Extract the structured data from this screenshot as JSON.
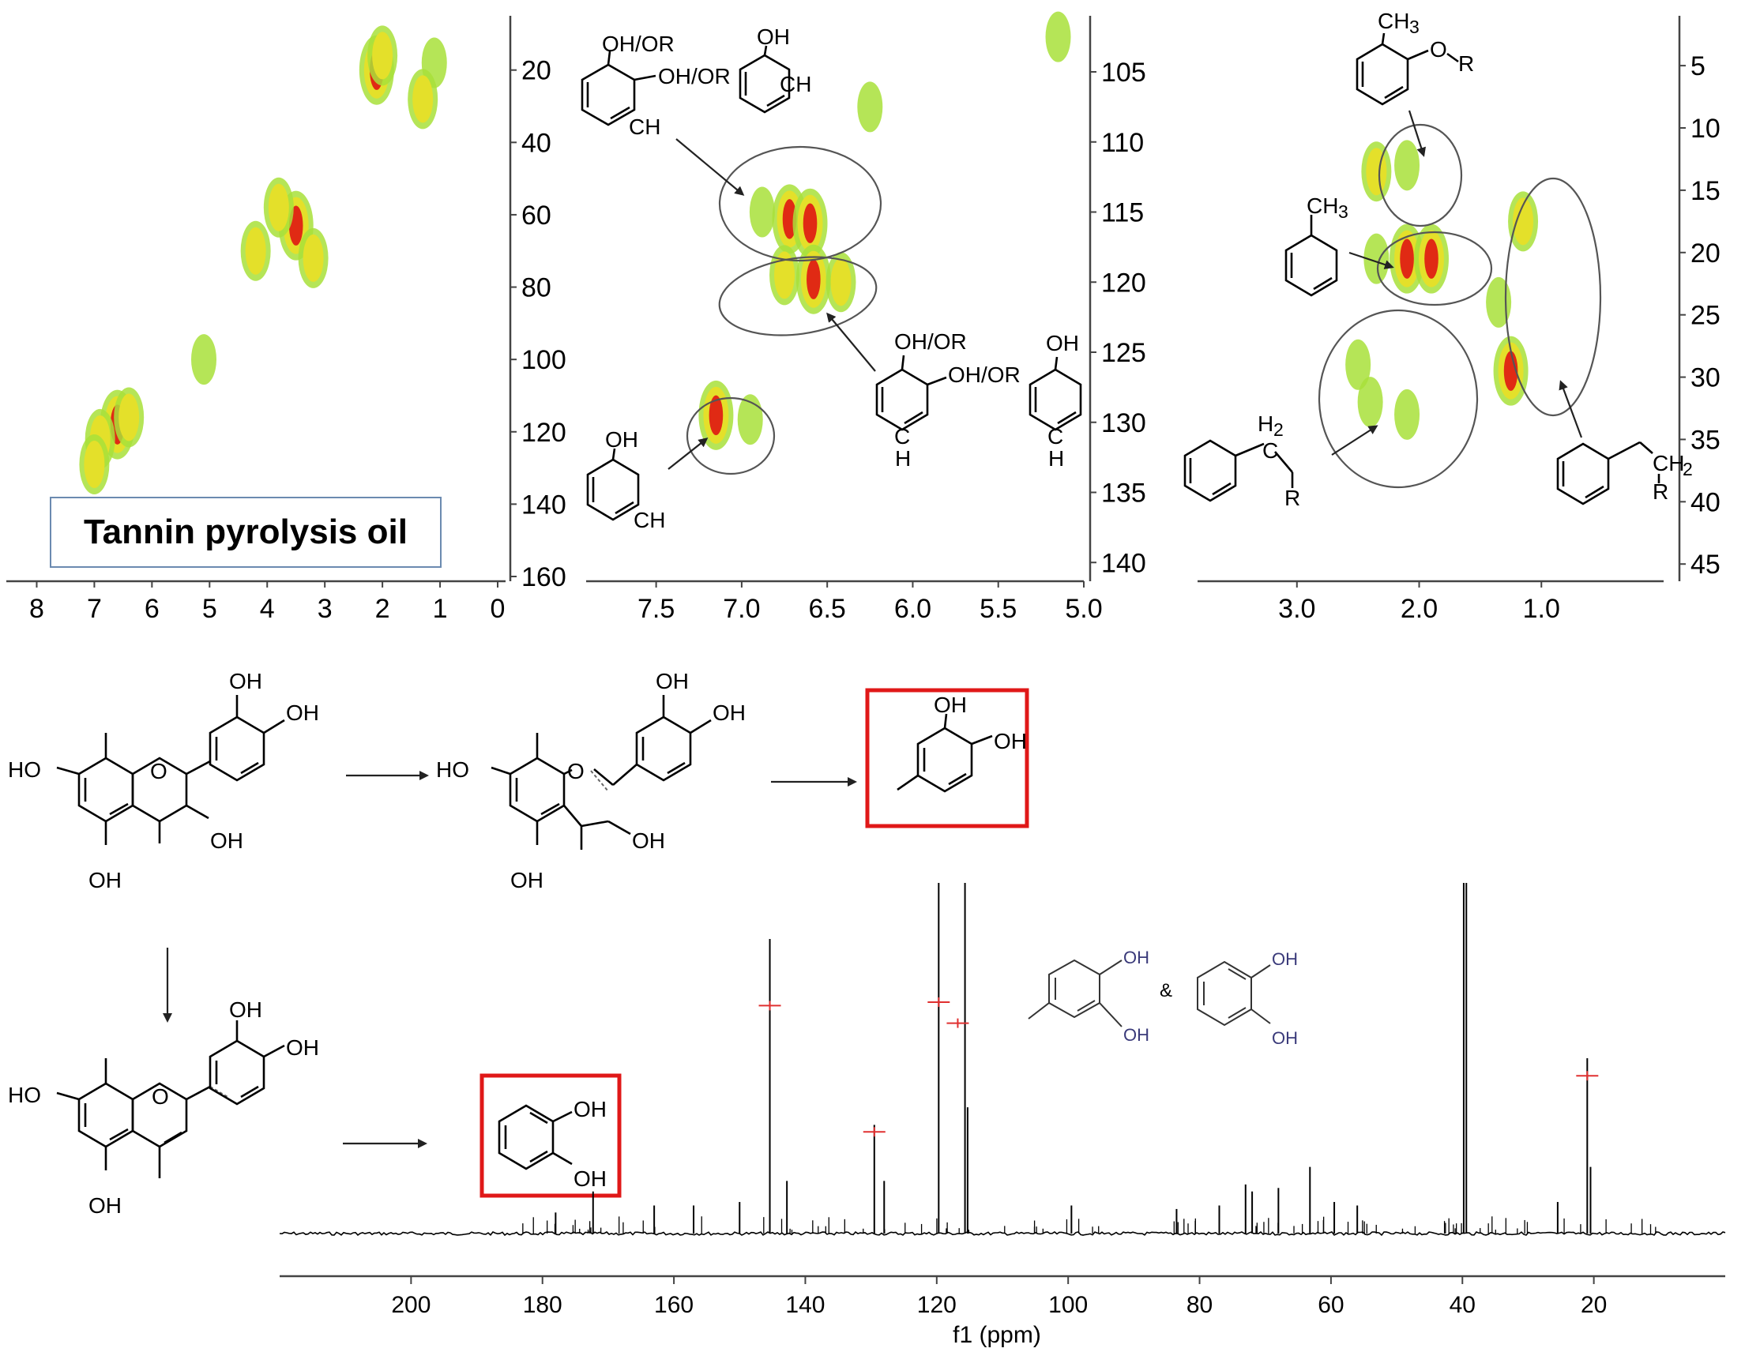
{
  "colors": {
    "peak_low": "#a8e03a",
    "peak_mid": "#e4e02a",
    "peak_high": "#e02a14",
    "highlight_box": "#e01818",
    "integration_mark": "#e03030",
    "axis": "#444444"
  },
  "panel_1": {
    "label": "Tannin pyrolysis oil",
    "x_ticks": [
      "8",
      "7",
      "6",
      "5",
      "4",
      "3",
      "2",
      "1",
      "0"
    ],
    "y_ticks": [
      "20",
      "40",
      "60",
      "80",
      "100",
      "120",
      "140",
      "160"
    ]
  },
  "panel_2": {
    "x_ticks": [
      "7.5",
      "7.0",
      "6.5",
      "6.0",
      "5.5",
      "5.0"
    ],
    "y_ticks": [
      "105",
      "110",
      "115",
      "120",
      "125",
      "130",
      "135",
      "140"
    ],
    "labels": {
      "catechol_oh": "OH/OR",
      "catechol_oh2": "OH/OR",
      "catechol_ch": "CH",
      "phenol_oh": "OH",
      "phenol_ch": "CH",
      "sub_oh": "OH/OR",
      "sub_oh2": "OH/OR",
      "sub_c": "C",
      "sub_h": "H",
      "para_oh": "OH",
      "para_c": "C",
      "para_h": "H",
      "meta_oh": "OH",
      "meta_ch": "CH"
    }
  },
  "panel_3": {
    "x_ticks": [
      "3.0",
      "2.0",
      "1.0"
    ],
    "y_ticks": [
      "5",
      "10",
      "15",
      "20",
      "25",
      "30",
      "35",
      "40",
      "45"
    ],
    "labels": {
      "ch3_or": "CH",
      "ch3_or_sub": "3",
      "or_o": "O",
      "or_r": "R",
      "toluene_ch3": "CH",
      "toluene_sub": "3",
      "ethyl_h2": "H",
      "ethyl_h2_sub": "2",
      "ethyl_c": "C",
      "ethyl_r": "R",
      "propyl_ch2": "CH",
      "propyl_ch2_sub": "2",
      "propyl_r": "R"
    }
  },
  "scheme": {
    "oh": "OH",
    "ho": "HO",
    "o": "O",
    "oh_cut": "OH"
  },
  "spectrum": {
    "xlabel": "f1 (ppm)",
    "x_ticks": [
      "200",
      "180",
      "160",
      "140",
      "120",
      "100",
      "80",
      "60",
      "40",
      "20"
    ],
    "inset_oh": "OH",
    "inset_amp": "&"
  },
  "chart_data": [
    {
      "type": "heatmap",
      "xlabel": "",
      "ylabel": "",
      "xlim": [
        8.5,
        0
      ],
      "ylim": [
        5,
        160
      ],
      "points": [
        {
          "x": 2.1,
          "y": 20,
          "level": 3
        },
        {
          "x": 2.0,
          "y": 16,
          "level": 2
        },
        {
          "x": 1.1,
          "y": 18,
          "level": 1
        },
        {
          "x": 1.3,
          "y": 28,
          "level": 2
        },
        {
          "x": 3.5,
          "y": 63,
          "level": 3
        },
        {
          "x": 3.8,
          "y": 58,
          "level": 2
        },
        {
          "x": 3.2,
          "y": 72,
          "level": 2
        },
        {
          "x": 4.2,
          "y": 70,
          "level": 2
        },
        {
          "x": 6.6,
          "y": 118,
          "level": 3
        },
        {
          "x": 6.9,
          "y": 122,
          "level": 2
        },
        {
          "x": 6.4,
          "y": 116,
          "level": 2
        },
        {
          "x": 7.0,
          "y": 129,
          "level": 2
        },
        {
          "x": 5.1,
          "y": 100,
          "level": 1
        }
      ]
    },
    {
      "type": "heatmap",
      "xlabel": "",
      "ylabel": "",
      "xlim": [
        7.9,
        5.0
      ],
      "ylim": [
        101,
        141
      ],
      "points": [
        {
          "x": 6.72,
          "y": 115.5,
          "level": 3
        },
        {
          "x": 6.6,
          "y": 115.8,
          "level": 3
        },
        {
          "x": 6.58,
          "y": 119.8,
          "level": 3
        },
        {
          "x": 6.42,
          "y": 120.0,
          "level": 2
        },
        {
          "x": 6.75,
          "y": 119.5,
          "level": 2
        },
        {
          "x": 7.15,
          "y": 129.5,
          "level": 3
        },
        {
          "x": 6.95,
          "y": 129.8,
          "level": 1
        },
        {
          "x": 6.88,
          "y": 115.0,
          "level": 1
        },
        {
          "x": 5.15,
          "y": 102.5,
          "level": 1
        },
        {
          "x": 6.25,
          "y": 107.5,
          "level": 1
        }
      ]
    },
    {
      "type": "heatmap",
      "xlabel": "",
      "ylabel": "",
      "xlim": [
        3.8,
        0
      ],
      "ylim": [
        1,
        46
      ],
      "points": [
        {
          "x": 2.35,
          "y": 13.5,
          "level": 2
        },
        {
          "x": 2.1,
          "y": 13.0,
          "level": 1
        },
        {
          "x": 2.1,
          "y": 20.5,
          "level": 3
        },
        {
          "x": 1.9,
          "y": 20.5,
          "level": 3
        },
        {
          "x": 2.35,
          "y": 20.5,
          "level": 1
        },
        {
          "x": 1.15,
          "y": 17.5,
          "level": 2
        },
        {
          "x": 1.25,
          "y": 29.5,
          "level": 3
        },
        {
          "x": 1.35,
          "y": 24.0,
          "level": 1
        },
        {
          "x": 2.4,
          "y": 32.0,
          "level": 1
        },
        {
          "x": 2.1,
          "y": 33.0,
          "level": 1
        },
        {
          "x": 2.5,
          "y": 29.0,
          "level": 1
        }
      ]
    },
    {
      "type": "line",
      "xlabel": "f1 (ppm)",
      "xlim": [
        220,
        0
      ],
      "peaks": [
        {
          "x": 145.4,
          "y": 0.84
        },
        {
          "x": 119.7,
          "y": 1.0
        },
        {
          "x": 115.7,
          "y": 1.0
        },
        {
          "x": 115.3,
          "y": 0.36
        },
        {
          "x": 129.5,
          "y": 0.31
        },
        {
          "x": 128.0,
          "y": 0.15
        },
        {
          "x": 39.8,
          "y": 1.0
        },
        {
          "x": 39.4,
          "y": 1.0
        },
        {
          "x": 21.0,
          "y": 0.5
        },
        {
          "x": 20.5,
          "y": 0.19
        },
        {
          "x": 172.3,
          "y": 0.12
        },
        {
          "x": 142.8,
          "y": 0.15
        },
        {
          "x": 63.2,
          "y": 0.19
        },
        {
          "x": 163.0,
          "y": 0.08
        },
        {
          "x": 157.0,
          "y": 0.08
        },
        {
          "x": 150.0,
          "y": 0.09
        },
        {
          "x": 99.5,
          "y": 0.08
        },
        {
          "x": 73.0,
          "y": 0.14
        },
        {
          "x": 72.0,
          "y": 0.12
        },
        {
          "x": 68.0,
          "y": 0.13
        },
        {
          "x": 59.5,
          "y": 0.09
        },
        {
          "x": 56.0,
          "y": 0.08
        },
        {
          "x": 25.5,
          "y": 0.09
        },
        {
          "x": 83.5,
          "y": 0.07
        },
        {
          "x": 77.0,
          "y": 0.08
        },
        {
          "x": 178.0,
          "y": 0.06
        }
      ]
    }
  ]
}
